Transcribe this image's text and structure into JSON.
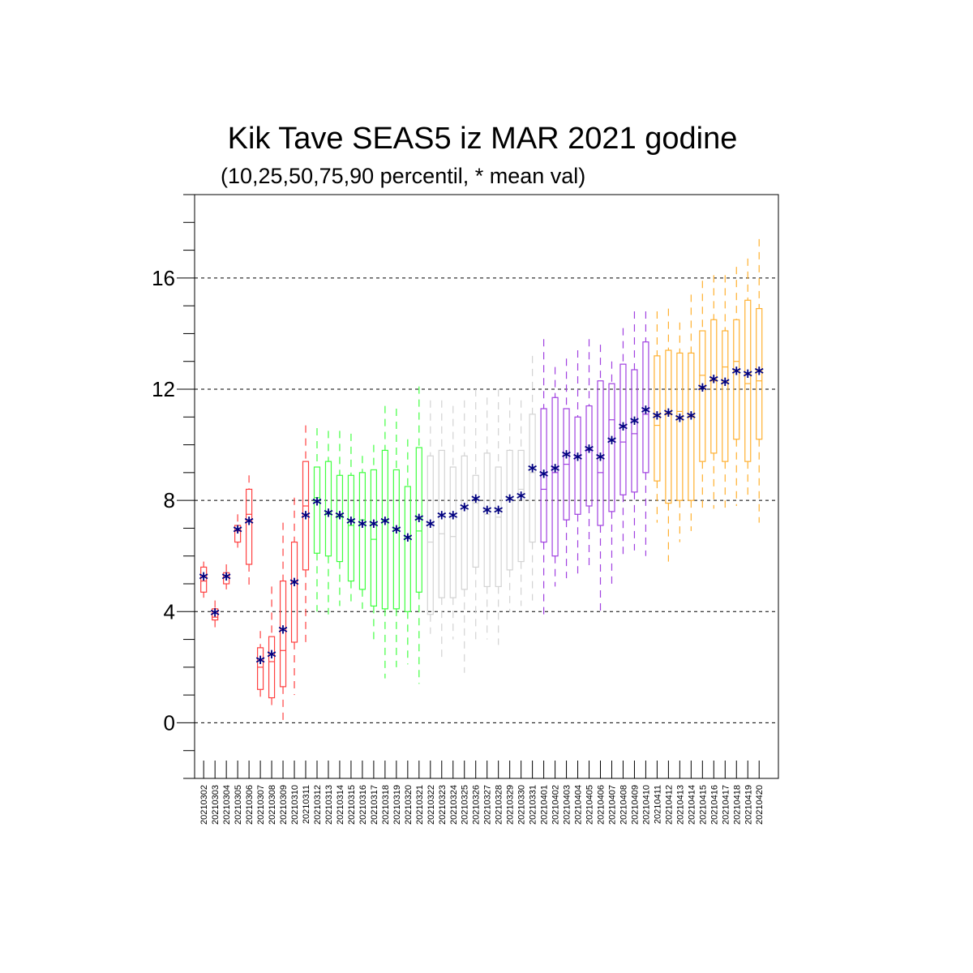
{
  "chart_data": {
    "type": "box",
    "title": "Kik Tave SEAS5 iz MAR 2021 godine",
    "subtitle": "(10,25,50,75,90 percentil, * mean val)",
    "xlabel": "",
    "ylabel": "",
    "ylim": [
      -2,
      19
    ],
    "yticks": [
      0,
      4,
      8,
      12,
      16
    ],
    "grid": "dashed horizontal lines at major y ticks",
    "colors": {
      "red": "#ff4040",
      "green": "#40ff40",
      "gray": "#d3d3d3",
      "purple": "#a040e0",
      "orange": "#ffb030",
      "mean": "#000080",
      "grid": "#000000"
    },
    "dates": [
      "20210302",
      "20210303",
      "20210304",
      "20210305",
      "20210306",
      "20210307",
      "20210308",
      "20210309",
      "20210310",
      "20210311",
      "20210312",
      "20210313",
      "20210314",
      "20210315",
      "20210316",
      "20210317",
      "20210318",
      "20210319",
      "20210320",
      "20210321",
      "20210322",
      "20210323",
      "20210324",
      "20210325",
      "20210326",
      "20210327",
      "20210328",
      "20210329",
      "20210330",
      "20210331",
      "20210401",
      "20210402",
      "20210403",
      "20210404",
      "20210405",
      "20210406",
      "20210407",
      "20210408",
      "20210409",
      "20210410",
      "20210411",
      "20210412",
      "20210413",
      "20210414",
      "20210415",
      "20210416",
      "20210417",
      "20210418",
      "20210419",
      "20210420"
    ],
    "color_group": [
      "red",
      "red",
      "red",
      "red",
      "red",
      "red",
      "red",
      "red",
      "red",
      "red",
      "green",
      "green",
      "green",
      "green",
      "green",
      "green",
      "green",
      "green",
      "green",
      "green",
      "gray",
      "gray",
      "gray",
      "gray",
      "gray",
      "gray",
      "gray",
      "gray",
      "gray",
      "gray",
      "purple",
      "purple",
      "purple",
      "purple",
      "purple",
      "purple",
      "purple",
      "purple",
      "purple",
      "purple",
      "orange",
      "orange",
      "orange",
      "orange",
      "orange",
      "orange",
      "orange",
      "orange",
      "orange",
      "orange"
    ],
    "p10": [
      4.5,
      3.4,
      4.8,
      6.3,
      4.8,
      0.9,
      0.6,
      0.0,
      1.0,
      2.8,
      4.0,
      3.9,
      4.2,
      4.2,
      4.1,
      3.0,
      1.6,
      2.0,
      2.1,
      1.4,
      3.2,
      2.2,
      3.0,
      1.8,
      2.9,
      3.0,
      2.8,
      4.0,
      4.2,
      4.4,
      3.7,
      4.9,
      5.2,
      5.2,
      5.5,
      4.0,
      4.8,
      6.0,
      6.2,
      6.0,
      7.2,
      5.8,
      6.5,
      6.9,
      7.6,
      7.7,
      7.6,
      7.8,
      8.1,
      7.2
    ],
    "p25": [
      4.7,
      3.7,
      5.0,
      6.5,
      5.7,
      1.2,
      0.9,
      1.3,
      2.9,
      5.5,
      6.1,
      6.0,
      5.8,
      5.1,
      4.8,
      4.2,
      4.1,
      4.1,
      4.0,
      4.7,
      3.9,
      4.5,
      4.5,
      4.8,
      5.6,
      4.9,
      4.9,
      5.5,
      5.8,
      6.5,
      6.5,
      6.0,
      7.3,
      7.5,
      7.8,
      7.1,
      7.6,
      8.2,
      8.3,
      9.0,
      8.7,
      7.9,
      8.0,
      8.0,
      9.4,
      9.7,
      9.4,
      10.2,
      9.4,
      10.2
    ],
    "p50": [
      5.1,
      3.8,
      5.3,
      6.9,
      7.5,
      2.0,
      2.2,
      2.6,
      5.1,
      7.8,
      8.1,
      7.5,
      7.4,
      7.1,
      7.3,
      6.6,
      7.3,
      7.0,
      6.7,
      6.9,
      6.5,
      6.8,
      6.7,
      7.8,
      7.9,
      7.5,
      7.4,
      8.0,
      8.4,
      9.0,
      8.4,
      9.0,
      9.3,
      9.6,
      9.8,
      9.0,
      10.9,
      10.1,
      10.4,
      11.1,
      10.7,
      11.1,
      11.2,
      11.0,
      12.5,
      12.3,
      12.8,
      13.0,
      12.2,
      12.3
    ],
    "p75": [
      5.6,
      4.1,
      5.4,
      7.1,
      8.4,
      2.7,
      3.1,
      5.1,
      6.5,
      9.4,
      9.2,
      9.4,
      8.9,
      8.9,
      9.0,
      9.1,
      9.8,
      9.1,
      8.5,
      9.9,
      9.6,
      9.8,
      9.2,
      9.6,
      8.9,
      9.7,
      9.2,
      9.8,
      9.8,
      11.1,
      11.3,
      11.7,
      11.3,
      11.0,
      11.4,
      12.3,
      12.2,
      12.9,
      12.7,
      13.7,
      13.2,
      13.4,
      13.3,
      13.3,
      14.1,
      14.5,
      14.1,
      14.5,
      15.2,
      14.9
    ],
    "p90": [
      5.8,
      4.4,
      5.7,
      7.5,
      8.9,
      3.3,
      4.9,
      7.2,
      8.1,
      10.7,
      10.6,
      10.5,
      10.5,
      10.4,
      9.6,
      10.0,
      11.4,
      11.3,
      10.2,
      12.1,
      11.6,
      11.6,
      11.4,
      11.6,
      12.0,
      11.7,
      12.0,
      11.7,
      11.6,
      13.2,
      13.8,
      12.8,
      13.1,
      13.4,
      13.8,
      13.6,
      13.0,
      14.2,
      14.8,
      14.8,
      14.8,
      14.9,
      14.4,
      15.4,
      15.9,
      16.1,
      16.1,
      16.4,
      16.7,
      17.4
    ],
    "mean": [
      5.2,
      3.9,
      5.2,
      6.9,
      7.2,
      2.2,
      2.4,
      3.3,
      5.0,
      7.4,
      7.9,
      7.5,
      7.4,
      7.2,
      7.1,
      7.1,
      7.2,
      6.9,
      6.6,
      7.3,
      7.1,
      7.4,
      7.4,
      7.7,
      8.0,
      7.6,
      7.6,
      8.0,
      8.1,
      9.1,
      8.9,
      9.1,
      9.6,
      9.5,
      9.8,
      9.5,
      10.1,
      10.6,
      10.8,
      11.2,
      11.0,
      11.1,
      10.9,
      11.0,
      12.0,
      12.3,
      12.2,
      12.6,
      12.5,
      12.6
    ]
  }
}
